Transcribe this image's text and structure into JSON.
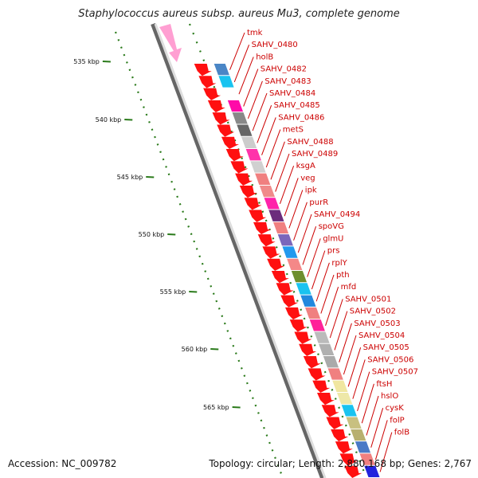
{
  "title": "Staphylococcus aureus subsp. aureus Mu3, complete genome",
  "footer": {
    "accession": "Accession: NC_009782",
    "stats": "Topology: circular; Length: 2,880,168 bp; Genes: 2,767"
  },
  "ticks": [
    {
      "label": "535 kbp"
    },
    {
      "label": "540 kbp"
    },
    {
      "label": "545 kbp"
    },
    {
      "label": "550 kbp"
    },
    {
      "label": "555 kbp"
    },
    {
      "label": "560 kbp"
    },
    {
      "label": "565 kbp"
    }
  ],
  "genes": [
    {
      "name": "tmk",
      "color": "#4a86c6"
    },
    {
      "name": "SAHV_0480",
      "color": "#19c3f0"
    },
    {
      "name": "holB",
      "color": "#ffffff"
    },
    {
      "name": "SAHV_0482",
      "color": "#ff0aa8"
    },
    {
      "name": "SAHV_0483",
      "color": "#888888"
    },
    {
      "name": "SAHV_0484",
      "color": "#666666"
    },
    {
      "name": "SAHV_0485",
      "color": "#cccccc"
    },
    {
      "name": "SAHV_0486",
      "color": "#ff33aa"
    },
    {
      "name": "metS",
      "color": "#d0d0d0"
    },
    {
      "name": "SAHV_0488",
      "color": "#f08080"
    },
    {
      "name": "SAHV_0489",
      "color": "#f08a8a"
    },
    {
      "name": "ksgA",
      "color": "#ff22aa"
    },
    {
      "name": "veg",
      "color": "#6c2c7c"
    },
    {
      "name": "ipk",
      "color": "#f08080"
    },
    {
      "name": "purR",
      "color": "#7a66bb"
    },
    {
      "name": "SAHV_0494",
      "color": "#2299ee"
    },
    {
      "name": "spoVG",
      "color": "#f48888"
    },
    {
      "name": "glmU",
      "color": "#6e8e2e"
    },
    {
      "name": "prs",
      "color": "#19c3f0"
    },
    {
      "name": "rplY",
      "color": "#2288dd"
    },
    {
      "name": "pth",
      "color": "#f08080"
    },
    {
      "name": "mfd",
      "color": "#ff2299"
    },
    {
      "name": "SAHV_0501",
      "color": "#bbbbbb"
    },
    {
      "name": "SAHV_0502",
      "color": "#b0b0b0"
    },
    {
      "name": "SAHV_0503",
      "color": "#aaaaaa"
    },
    {
      "name": "SAHV_0504",
      "color": "#f08080"
    },
    {
      "name": "SAHV_0505",
      "color": "#f0e6a0"
    },
    {
      "name": "SAHV_0506",
      "color": "#eee8a8"
    },
    {
      "name": "SAHV_0507",
      "color": "#19c3f0"
    },
    {
      "name": "ftsH",
      "color": "#c8c080"
    },
    {
      "name": "hslO",
      "color": "#b8b070"
    },
    {
      "name": "cysK",
      "color": "#4a7ac6"
    },
    {
      "name": "folP",
      "color": "#f08080"
    },
    {
      "name": "folB",
      "color": "#2222dd"
    }
  ]
}
